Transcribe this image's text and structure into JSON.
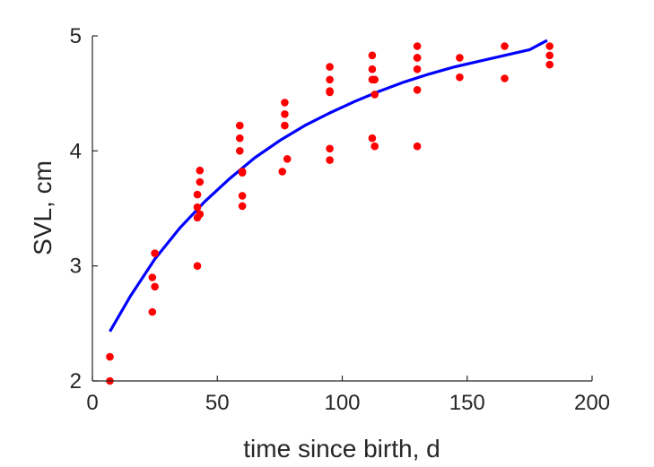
{
  "chart_data": {
    "type": "scatter",
    "title": "",
    "xlabel": "time since birth, d",
    "ylabel": "SVL, cm",
    "xlim": [
      0,
      200
    ],
    "ylim": [
      2,
      5
    ],
    "xticks": [
      0,
      50,
      100,
      150,
      200
    ],
    "yticks": [
      2,
      3,
      4,
      5
    ],
    "grid": false,
    "legend": "none",
    "points_color": "#ff0000",
    "curve_color": "#0000ff",
    "series": [
      {
        "kind": "points",
        "x": [
          7,
          7,
          24,
          24,
          25,
          25,
          42,
          42,
          42,
          42,
          43,
          43,
          43,
          59,
          59,
          59,
          60,
          60,
          60,
          60,
          76,
          77,
          77,
          77,
          78,
          95,
          95,
          95,
          95,
          95,
          95,
          112,
          112,
          112,
          112,
          113,
          113,
          113,
          130,
          130,
          130,
          130,
          130,
          130,
          147,
          147,
          165,
          165,
          183,
          183,
          183
        ],
        "y": [
          2.21,
          2.0,
          2.9,
          2.6,
          3.11,
          2.82,
          3.0,
          3.42,
          3.51,
          3.62,
          3.73,
          3.83,
          3.45,
          4.22,
          4.11,
          4.0,
          3.81,
          3.61,
          3.52,
          3.82,
          3.82,
          4.42,
          4.32,
          4.22,
          3.93,
          4.73,
          4.62,
          4.51,
          4.02,
          3.92,
          4.52,
          4.83,
          4.71,
          4.62,
          4.11,
          4.49,
          4.04,
          4.62,
          4.91,
          4.81,
          4.71,
          4.53,
          4.04,
          4.81,
          4.81,
          4.64,
          4.91,
          4.63,
          4.91,
          4.83,
          4.75
        ]
      },
      {
        "kind": "fit-curve",
        "x": [
          7,
          15,
          25,
          35,
          45,
          55,
          65,
          75,
          85,
          95,
          105,
          115,
          125,
          135,
          145,
          155,
          165,
          175,
          182
        ],
        "y": [
          2.43,
          2.73,
          3.06,
          3.33,
          3.56,
          3.76,
          3.94,
          4.09,
          4.22,
          4.33,
          4.43,
          4.52,
          4.6,
          4.67,
          4.73,
          4.78,
          4.83,
          4.88,
          4.96
        ]
      }
    ]
  }
}
